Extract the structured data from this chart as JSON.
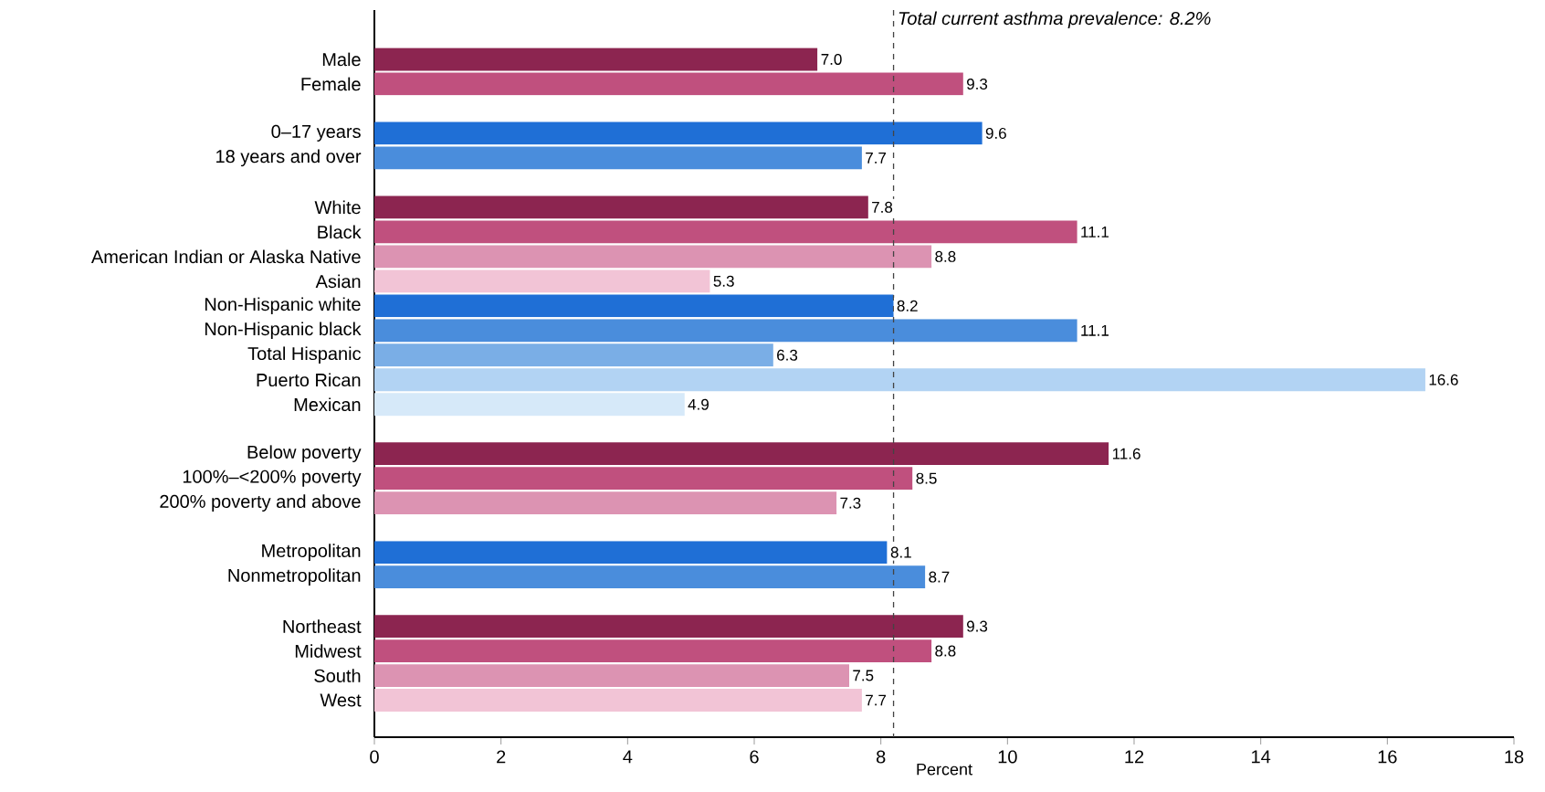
{
  "chart_data": {
    "type": "bar",
    "orientation": "horizontal",
    "categories": [
      "Male",
      "Female",
      null,
      "0–17 years",
      "18 years and over",
      null,
      "White",
      "Black",
      "American Indian or Alaska Native",
      "Asian",
      "Non-Hispanic white",
      "Non-Hispanic black",
      "Total Hispanic",
      "Puerto Rican",
      "Mexican",
      null,
      "Below poverty",
      "100%–<200% poverty",
      "200% poverty and above",
      null,
      "Metropolitan",
      "Nonmetropolitan",
      null,
      "Northeast",
      "Midwest",
      "South",
      "West"
    ],
    "values": [
      7.0,
      9.3,
      null,
      9.6,
      7.7,
      null,
      7.8,
      11.1,
      8.8,
      5.3,
      8.2,
      11.1,
      6.3,
      16.6,
      4.9,
      null,
      11.6,
      8.5,
      7.3,
      null,
      8.1,
      8.7,
      null,
      9.3,
      8.8,
      7.5,
      7.7
    ],
    "value_labels": [
      "7.0",
      "9.3",
      null,
      "9.6",
      "7.7",
      null,
      "7.8",
      "11.1",
      "8.8",
      "5.3",
      "8.2",
      "11.1",
      "6.3",
      "16.6",
      "4.9",
      null,
      "11.6",
      "8.5",
      "7.3",
      null,
      "8.1",
      "8.7",
      null,
      "9.3",
      "8.8",
      "7.5",
      "7.7"
    ],
    "colors": [
      "#8c2550",
      "#c0507e",
      null,
      "#1f6fd6",
      "#4a8ddc",
      null,
      "#8c2550",
      "#c0507e",
      "#dc93b2",
      "#f2c4d6",
      "#1f6fd6",
      "#4a8ddc",
      "#7aaee6",
      "#b2d3f3",
      "#d6e9f9",
      null,
      "#8c2550",
      "#c0507e",
      "#dc93b2",
      null,
      "#1f6fd6",
      "#4a8ddc",
      null,
      "#8c2550",
      "#c0507e",
      "#dc93b2",
      "#f2c4d6"
    ],
    "xlabel": "Percent",
    "xlim": [
      0,
      18
    ],
    "xticks": [
      0,
      2,
      4,
      6,
      8,
      10,
      12,
      14,
      16,
      18
    ],
    "ref_lines": [
      {
        "axis": "x",
        "value": 8.2,
        "label": "Total current asthma prevalence: 8.2%",
        "line_style": "dashed",
        "color": "#444444"
      }
    ],
    "grid": false
  }
}
